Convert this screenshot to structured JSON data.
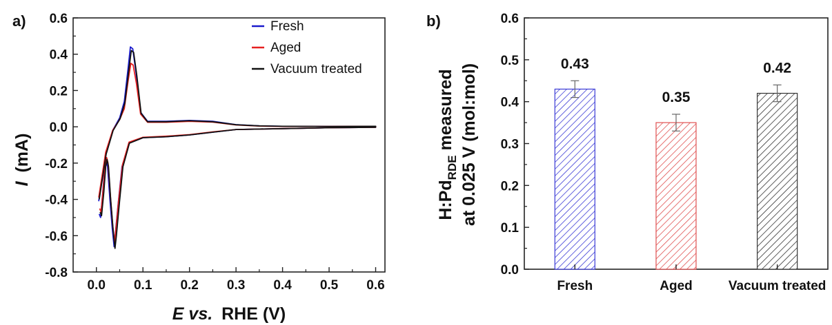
{
  "chart_data": [
    {
      "panel": "a)",
      "type": "line",
      "xlabel": {
        "italic": "E vs.",
        "rest": "RHE (V)"
      },
      "ylabel": {
        "italic": "I",
        "rest": "(mA)"
      },
      "xlim": [
        -0.05,
        0.62
      ],
      "ylim": [
        -0.8,
        0.6
      ],
      "xticks": [
        "0.0",
        "0.1",
        "0.2",
        "0.3",
        "0.4",
        "0.5",
        "0.6"
      ],
      "yticks": [
        "-0.8",
        "-0.6",
        "-0.4",
        "-0.2",
        "0.0",
        "0.2",
        "0.4",
        "0.6"
      ],
      "legend_position": "top-right",
      "series": [
        {
          "name": "Fresh",
          "color": "#1a1acc",
          "x": [
            0.005,
            0.02,
            0.035,
            0.05,
            0.06,
            0.068,
            0.073,
            0.078,
            0.085,
            0.095,
            0.11,
            0.15,
            0.2,
            0.25,
            0.3,
            0.35,
            0.4,
            0.5,
            0.6,
            0.6,
            0.5,
            0.4,
            0.3,
            0.25,
            0.2,
            0.15,
            0.1,
            0.07,
            0.055,
            0.047,
            0.041,
            0.038,
            0.034,
            0.029,
            0.024,
            0.021,
            0.018,
            0.014,
            0.009,
            0.006
          ],
          "y": [
            -0.41,
            -0.15,
            -0.02,
            0.05,
            0.14,
            0.32,
            0.44,
            0.43,
            0.3,
            0.08,
            0.03,
            0.03,
            0.035,
            0.03,
            0.012,
            0.005,
            0.003,
            0.002,
            0.003,
            -0.003,
            -0.005,
            -0.01,
            -0.015,
            -0.03,
            -0.045,
            -0.055,
            -0.06,
            -0.09,
            -0.22,
            -0.42,
            -0.58,
            -0.66,
            -0.56,
            -0.4,
            -0.22,
            -0.18,
            -0.22,
            -0.35,
            -0.5,
            -0.48
          ]
        },
        {
          "name": "Aged",
          "color": "#e62020",
          "x": [
            0.005,
            0.02,
            0.035,
            0.05,
            0.06,
            0.068,
            0.074,
            0.079,
            0.086,
            0.095,
            0.11,
            0.15,
            0.2,
            0.25,
            0.3,
            0.35,
            0.4,
            0.5,
            0.6,
            0.6,
            0.5,
            0.4,
            0.3,
            0.25,
            0.2,
            0.15,
            0.1,
            0.07,
            0.056,
            0.048,
            0.042,
            0.039,
            0.035,
            0.03,
            0.025,
            0.022,
            0.019,
            0.015,
            0.01,
            0.007
          ],
          "y": [
            -0.39,
            -0.14,
            -0.02,
            0.04,
            0.1,
            0.25,
            0.35,
            0.34,
            0.24,
            0.07,
            0.025,
            0.025,
            0.03,
            0.026,
            0.01,
            0.004,
            0.002,
            0.002,
            0.003,
            -0.003,
            -0.005,
            -0.01,
            -0.015,
            -0.028,
            -0.043,
            -0.052,
            -0.058,
            -0.085,
            -0.21,
            -0.4,
            -0.56,
            -0.64,
            -0.54,
            -0.38,
            -0.2,
            -0.17,
            -0.21,
            -0.33,
            -0.47,
            -0.45
          ]
        },
        {
          "name": "Vacuum treated",
          "color": "#111111",
          "x": [
            0.006,
            0.021,
            0.036,
            0.051,
            0.061,
            0.069,
            0.075,
            0.08,
            0.087,
            0.096,
            0.11,
            0.15,
            0.2,
            0.25,
            0.3,
            0.35,
            0.4,
            0.5,
            0.6,
            0.6,
            0.5,
            0.4,
            0.3,
            0.25,
            0.2,
            0.15,
            0.1,
            0.071,
            0.057,
            0.049,
            0.043,
            0.04,
            0.036,
            0.031,
            0.026,
            0.023,
            0.02,
            0.016,
            0.011,
            0.008
          ],
          "y": [
            -0.4,
            -0.15,
            -0.02,
            0.045,
            0.13,
            0.3,
            0.42,
            0.41,
            0.28,
            0.075,
            0.028,
            0.028,
            0.033,
            0.028,
            0.011,
            0.005,
            0.003,
            0.002,
            0.003,
            -0.003,
            -0.005,
            -0.01,
            -0.015,
            -0.03,
            -0.045,
            -0.055,
            -0.06,
            -0.09,
            -0.22,
            -0.43,
            -0.6,
            -0.67,
            -0.57,
            -0.41,
            -0.22,
            -0.18,
            -0.22,
            -0.36,
            -0.49,
            -0.47
          ]
        }
      ]
    },
    {
      "panel": "b)",
      "type": "bar",
      "ylabel_line1": "H:Pd",
      "ylabel_sub": "RDE",
      "ylabel_line1_rest": " measured",
      "ylabel_line2": "at 0.025 V (mol:mol)",
      "ylim": [
        0.0,
        0.6
      ],
      "yticks": [
        "0.0",
        "0.1",
        "0.2",
        "0.3",
        "0.4",
        "0.5",
        "0.6"
      ],
      "categories": [
        "Fresh",
        "Aged",
        "Vacuum treated"
      ],
      "values": [
        0.43,
        0.35,
        0.42
      ],
      "errors": [
        0.02,
        0.02,
        0.02
      ],
      "data_labels": [
        "0.43",
        "0.35",
        "0.42"
      ],
      "colors": [
        "#3b3bd6",
        "#e05050",
        "#333333"
      ]
    }
  ]
}
